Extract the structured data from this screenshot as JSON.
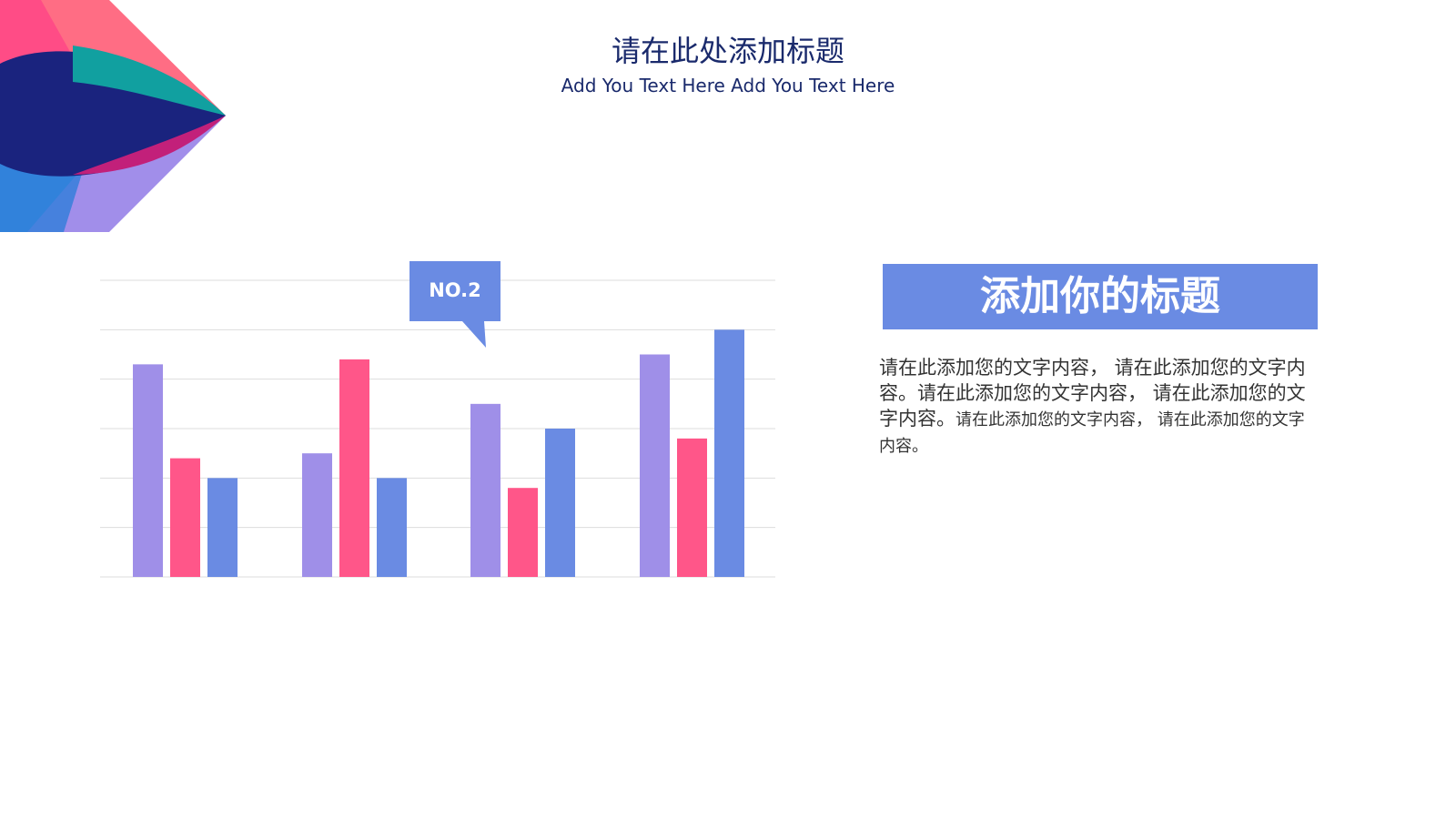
{
  "slide": {
    "title": "请在此处添加标题",
    "subtitle": "Add You Text Here Add You Text Here"
  },
  "callout": {
    "label": "NO.2"
  },
  "info_box": {
    "heading": "添加你的标题",
    "body_main": "请在此添加您的文字内容， 请在此添加您的文字内容。请在此添加您的文字内容， 请在此添加您的文字内容。",
    "body_small": "请在此添加您的文字内容， 请在此添加您的文字内容。"
  },
  "colors": {
    "series_1": "#9f8fe8",
    "series_2": "#ff5689",
    "series_3": "#6a8be3",
    "title_text": "#1a2a6c",
    "grid": "#dddddd"
  },
  "chart_data": {
    "type": "bar",
    "categories": [
      "",
      "",
      "",
      ""
    ],
    "series": [
      {
        "color": "#9f8fe8",
        "values": [
          4.3,
          2.5,
          3.5,
          4.5
        ]
      },
      {
        "color": "#ff5689",
        "values": [
          2.4,
          4.4,
          1.8,
          2.8
        ]
      },
      {
        "color": "#6a8be3",
        "values": [
          2.0,
          2.0,
          3.0,
          5.0
        ]
      }
    ],
    "ylim": [
      0,
      6
    ],
    "y_gridlines": [
      0,
      1,
      2,
      3,
      4,
      5,
      6
    ],
    "grid": true,
    "legend": "none"
  }
}
